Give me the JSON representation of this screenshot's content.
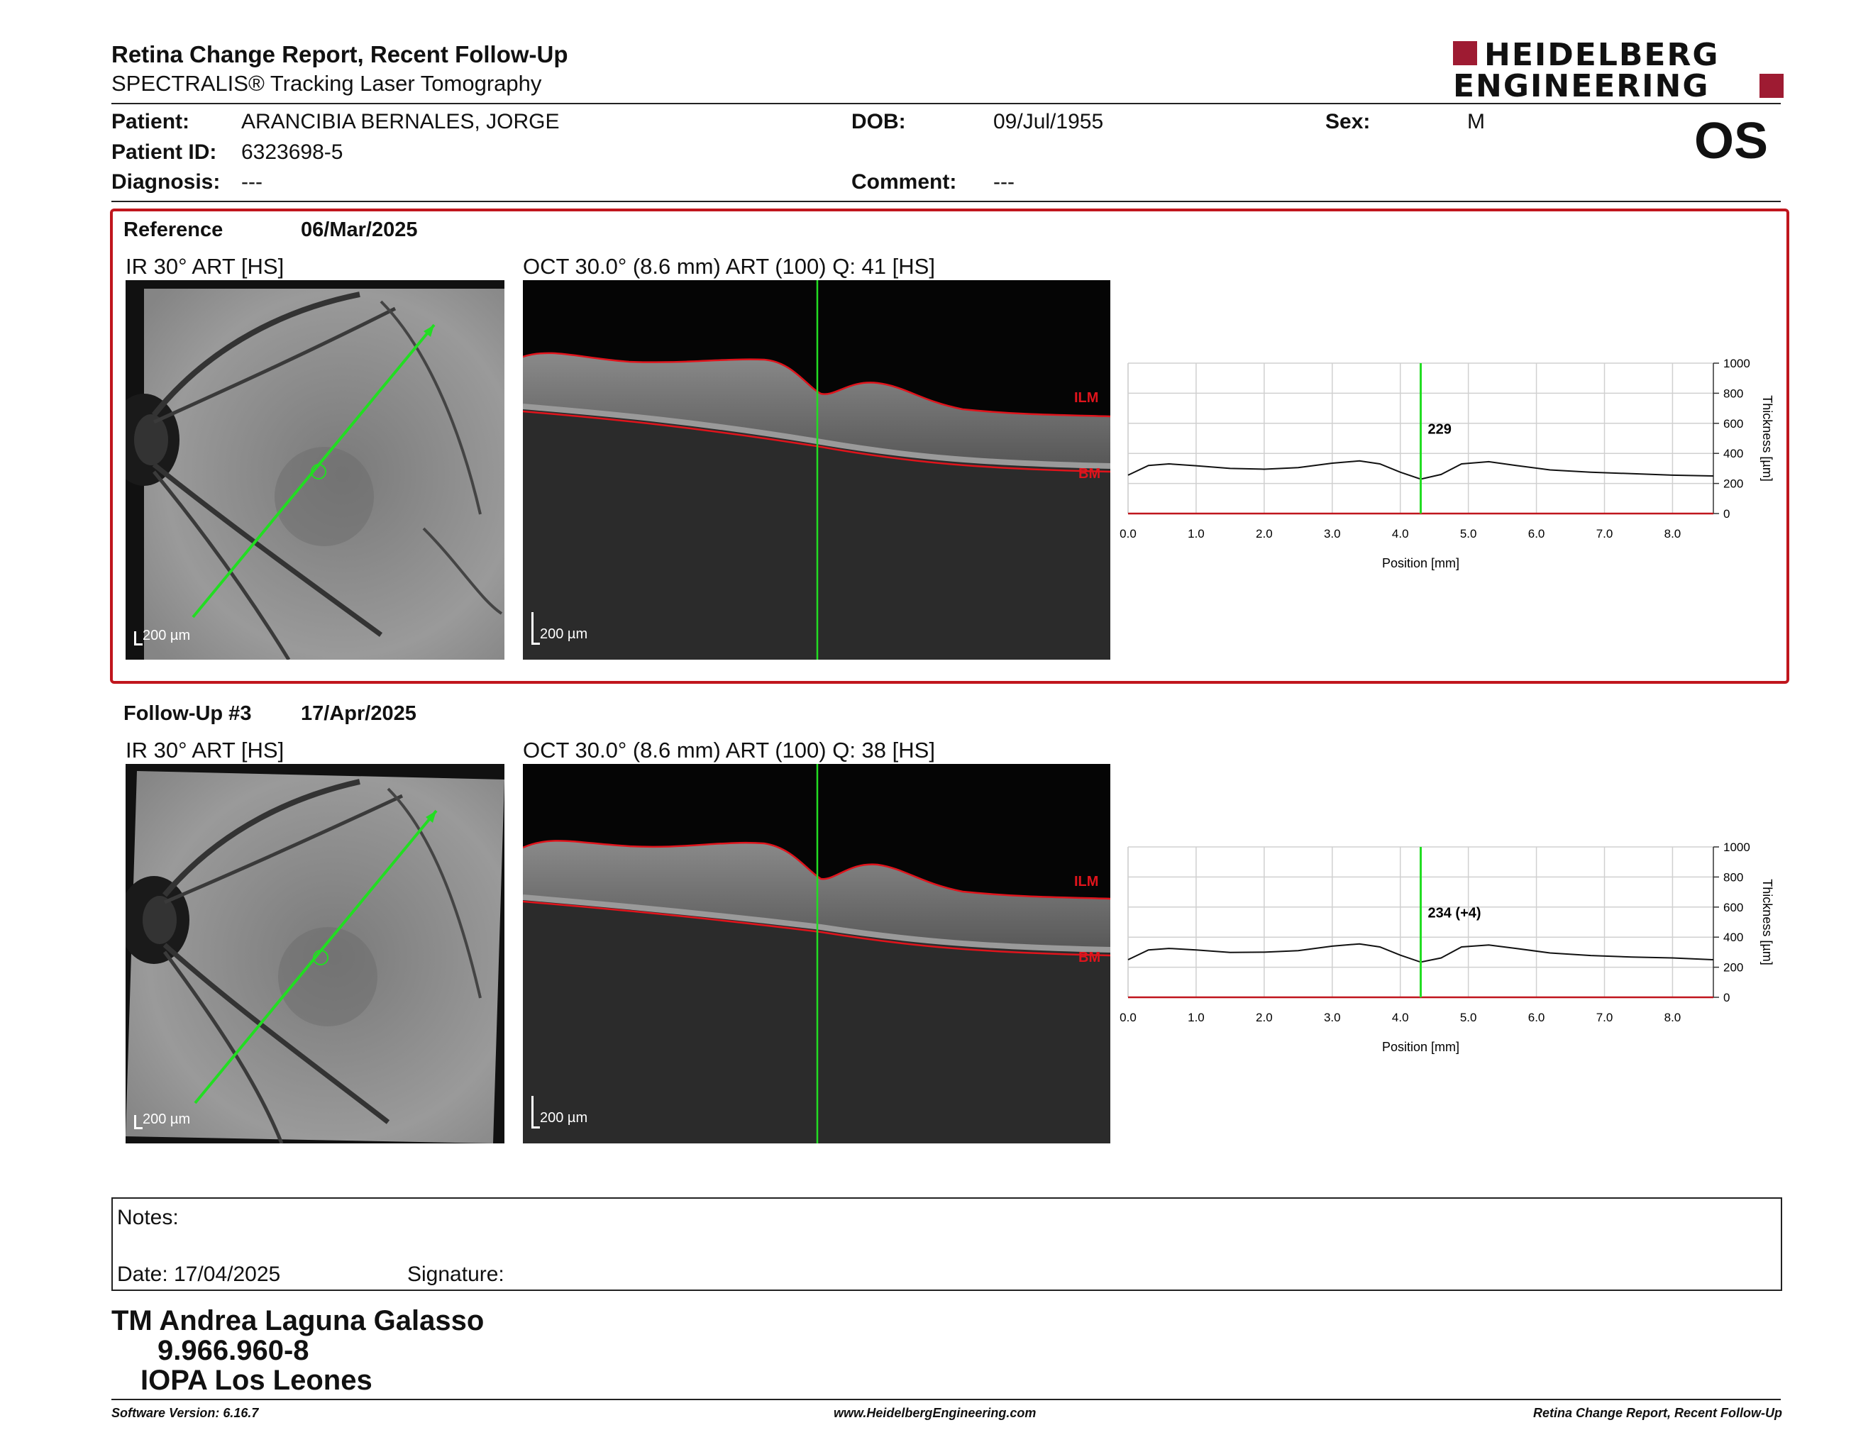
{
  "header": {
    "title": "Retina Change Report, Recent Follow-Up",
    "subtitle": "SPECTRALIS® Tracking Laser Tomography",
    "logo_line1": "HEIDELBERG",
    "logo_line2": "ENGINEERING"
  },
  "patient": {
    "patient_label": "Patient:",
    "patient_value": "ARANCIBIA BERNALES, JORGE",
    "id_label": "Patient ID:",
    "id_value": "6323698-5",
    "diagnosis_label": "Diagnosis:",
    "diagnosis_value": "---",
    "dob_label": "DOB:",
    "dob_value": "09/Jul/1955",
    "comment_label": "Comment:",
    "comment_value": "---",
    "sex_label": "Sex:",
    "sex_value": "M",
    "eye": "OS"
  },
  "reference": {
    "label": "Reference",
    "date": "06/Mar/2025",
    "ir_caption": "IR 30° ART [HS]",
    "oct_caption": "OCT 30.0° (8.6 mm) ART (100) Q: 41 [HS]",
    "scale_ir": "200 µm",
    "scale_oct": "200 µm",
    "ilm": "ILM",
    "bm": "BM"
  },
  "followup": {
    "label": "Follow-Up #3",
    "date": "17/Apr/2025",
    "ir_caption": "IR 30° ART [HS]",
    "oct_caption": "OCT 30.0° (8.6 mm) ART (100) Q: 38 [HS]",
    "scale_ir": "200 µm",
    "scale_oct": "200 µm",
    "ilm": "ILM",
    "bm": "BM"
  },
  "chart_data": [
    {
      "type": "line",
      "xlabel": "Position [mm]",
      "ylabel": "Thickness [µm]",
      "xlim": [
        0,
        8.6
      ],
      "ylim": [
        0,
        1000
      ],
      "x_ticks": [
        "0.0",
        "1.0",
        "2.0",
        "3.0",
        "4.0",
        "5.0",
        "6.0",
        "7.0",
        "8.0"
      ],
      "y_ticks": [
        "0",
        "200",
        "400",
        "600",
        "800",
        "1000"
      ],
      "marker_x": 4.3,
      "marker_label": "229",
      "grid": true,
      "x": [
        0,
        0.3,
        0.6,
        1.0,
        1.5,
        2.0,
        2.5,
        3.0,
        3.4,
        3.7,
        4.0,
        4.3,
        4.6,
        4.9,
        5.3,
        5.7,
        6.2,
        6.8,
        7.4,
        8.0,
        8.6
      ],
      "y": [
        255,
        320,
        330,
        318,
        300,
        295,
        305,
        335,
        350,
        330,
        275,
        229,
        260,
        330,
        345,
        320,
        290,
        275,
        265,
        255,
        250
      ]
    },
    {
      "type": "line",
      "xlabel": "Position [mm]",
      "ylabel": "Thickness [µm]",
      "xlim": [
        0,
        8.6
      ],
      "ylim": [
        0,
        1000
      ],
      "x_ticks": [
        "0.0",
        "1.0",
        "2.0",
        "3.0",
        "4.0",
        "5.0",
        "6.0",
        "7.0",
        "8.0"
      ],
      "y_ticks": [
        "0",
        "200",
        "400",
        "600",
        "800",
        "1000"
      ],
      "marker_x": 4.3,
      "marker_label": "234 (+4)",
      "grid": true,
      "x": [
        0,
        0.3,
        0.6,
        1.0,
        1.5,
        2.0,
        2.5,
        3.0,
        3.4,
        3.7,
        4.0,
        4.3,
        4.6,
        4.9,
        5.3,
        5.7,
        6.2,
        6.8,
        7.4,
        8.0,
        8.6
      ],
      "y": [
        250,
        315,
        325,
        315,
        298,
        300,
        310,
        340,
        355,
        335,
        280,
        234,
        262,
        335,
        348,
        325,
        295,
        278,
        268,
        262,
        250
      ]
    }
  ],
  "notes": {
    "label": "Notes:",
    "date_label": "Date: 17/04/2025",
    "signature_label": "Signature:"
  },
  "signature": {
    "name": "TM Andrea Laguna Galasso",
    "rut": "9.966.960-8",
    "place": "IOPA Los Leones"
  },
  "footer": {
    "version": "Software Version: 6.16.7",
    "website": "www.HeidelbergEngineering.com",
    "report": "Retina Change Report, Recent Follow-Up"
  },
  "colors": {
    "panel_border": "#c0161d",
    "marker": "#22dd22",
    "layer_line": "#e0141c",
    "logo_red": "#9e1b32"
  }
}
